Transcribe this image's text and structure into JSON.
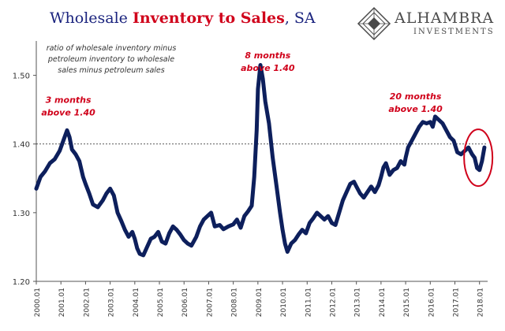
{
  "title": {
    "part1": "Wholesale ",
    "part2": "Inventory to Sales",
    "part3": ", SA"
  },
  "logo": {
    "name": "ALHAMBRA",
    "sub": "INVESTMENTS"
  },
  "colors": {
    "series": "#0d1f5c",
    "annotation": "#d0021b",
    "title": "#1a237e",
    "axis_text": "#333333"
  },
  "chart_data": {
    "type": "line",
    "title": "Wholesale Inventory to Sales, SA",
    "xlabel": "",
    "ylabel": "",
    "ylim": [
      1.2,
      1.55
    ],
    "xlim": [
      2000.0,
      2018.33
    ],
    "yticks": [
      1.2,
      1.3,
      1.4,
      1.5
    ],
    "ytick_labels": [
      "1.20",
      "1.30",
      "1.40",
      "1.50"
    ],
    "xtick_labels": [
      "2000.01",
      "2001.01",
      "2002.01",
      "2003.01",
      "2004.01",
      "2005.01",
      "2006.01",
      "2007.01",
      "2008.01",
      "2009.01",
      "2010.01",
      "2011.01",
      "2012.01",
      "2013.01",
      "2014.01",
      "2015.01",
      "2016.01",
      "2017.01",
      "2018.01"
    ],
    "reference_line": 1.4,
    "note": "ratio of wholesale inventory minus petroleum inventory to wholesale sales minus petroleum sales",
    "annotations": [
      {
        "line1": "3 months",
        "line2": "above 1.40",
        "x": 2001.3,
        "y": 1.46
      },
      {
        "line1": "8 months",
        "line2": "above 1.40",
        "x": 2009.4,
        "y": 1.525
      },
      {
        "line1": "20 months",
        "line2": "above 1.40",
        "x": 2015.4,
        "y": 1.465
      }
    ],
    "highlight": {
      "x": 2017.95,
      "y": 1.38,
      "label": "recent decline circled"
    },
    "series": [
      {
        "name": "Inventory to Sales ratio",
        "x": [
          2000.0,
          2000.17,
          2000.35,
          2000.55,
          2000.75,
          2000.95,
          2001.1,
          2001.25,
          2001.35,
          2001.45,
          2001.6,
          2001.75,
          2001.9,
          2002.0,
          2002.15,
          2002.3,
          2002.5,
          2002.7,
          2002.85,
          2003.0,
          2003.15,
          2003.3,
          2003.45,
          2003.6,
          2003.75,
          2003.9,
          2004.0,
          2004.1,
          2004.2,
          2004.35,
          2004.5,
          2004.65,
          2004.8,
          2004.95,
          2005.1,
          2005.25,
          2005.4,
          2005.55,
          2005.7,
          2005.85,
          2006.0,
          2006.15,
          2006.3,
          2006.5,
          2006.65,
          2006.8,
          2006.95,
          2007.1,
          2007.25,
          2007.45,
          2007.6,
          2007.8,
          2008.0,
          2008.15,
          2008.3,
          2008.45,
          2008.6,
          2008.75,
          2008.85,
          2008.95,
          2009.0,
          2009.1,
          2009.2,
          2009.3,
          2009.45,
          2009.6,
          2009.75,
          2009.9,
          2010.0,
          2010.1,
          2010.2,
          2010.35,
          2010.5,
          2010.65,
          2010.8,
          2010.95,
          2011.1,
          2011.25,
          2011.4,
          2011.55,
          2011.7,
          2011.85,
          2012.0,
          2012.15,
          2012.3,
          2012.45,
          2012.6,
          2012.75,
          2012.9,
          2013.0,
          2013.15,
          2013.3,
          2013.45,
          2013.6,
          2013.75,
          2013.9,
          2014.0,
          2014.1,
          2014.2,
          2014.35,
          2014.5,
          2014.65,
          2014.8,
          2014.95,
          2015.0,
          2015.1,
          2015.25,
          2015.4,
          2015.55,
          2015.7,
          2015.85,
          2016.0,
          2016.1,
          2016.2,
          2016.35,
          2016.5,
          2016.65,
          2016.8,
          2016.95,
          2017.1,
          2017.25,
          2017.4,
          2017.55,
          2017.7,
          2017.8,
          2017.9,
          2018.0,
          2018.1,
          2018.2
        ],
        "values": [
          1.335,
          1.352,
          1.36,
          1.372,
          1.378,
          1.39,
          1.405,
          1.42,
          1.41,
          1.392,
          1.385,
          1.375,
          1.352,
          1.342,
          1.328,
          1.312,
          1.308,
          1.318,
          1.328,
          1.335,
          1.325,
          1.3,
          1.288,
          1.275,
          1.265,
          1.272,
          1.262,
          1.248,
          1.24,
          1.238,
          1.25,
          1.262,
          1.265,
          1.272,
          1.258,
          1.255,
          1.27,
          1.28,
          1.275,
          1.268,
          1.26,
          1.255,
          1.252,
          1.265,
          1.28,
          1.29,
          1.295,
          1.3,
          1.28,
          1.282,
          1.276,
          1.28,
          1.283,
          1.29,
          1.278,
          1.295,
          1.302,
          1.31,
          1.352,
          1.42,
          1.48,
          1.515,
          1.495,
          1.462,
          1.43,
          1.38,
          1.34,
          1.3,
          1.275,
          1.255,
          1.243,
          1.255,
          1.26,
          1.268,
          1.275,
          1.27,
          1.285,
          1.292,
          1.3,
          1.295,
          1.29,
          1.295,
          1.285,
          1.282,
          1.3,
          1.318,
          1.33,
          1.342,
          1.345,
          1.338,
          1.328,
          1.322,
          1.33,
          1.338,
          1.33,
          1.34,
          1.352,
          1.366,
          1.372,
          1.355,
          1.362,
          1.365,
          1.375,
          1.37,
          1.38,
          1.395,
          1.405,
          1.415,
          1.425,
          1.432,
          1.43,
          1.432,
          1.425,
          1.44,
          1.435,
          1.43,
          1.42,
          1.41,
          1.405,
          1.388,
          1.385,
          1.39,
          1.395,
          1.385,
          1.38,
          1.365,
          1.362,
          1.375,
          1.395
        ]
      }
    ]
  }
}
